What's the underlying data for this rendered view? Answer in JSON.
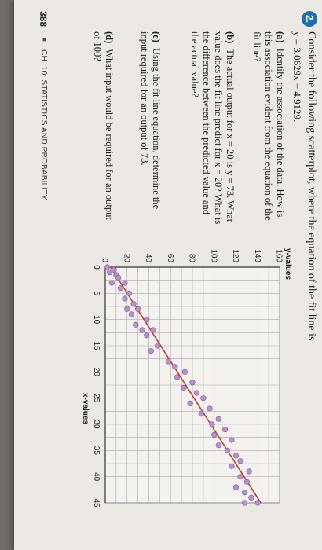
{
  "page_number": "388",
  "footer": "CH. 10: STATISTICS AND PROBABILITY",
  "question": {
    "number": "2.",
    "stem": "Consider the following scatterplot, where the equation of the fit line is",
    "equation": "y = 3.0629x + 4.9129."
  },
  "parts": [
    {
      "label": "(a)",
      "text": "Identify the association of the data. How is this association evident from the equation of the fit line?"
    },
    {
      "label": "(b)",
      "text": "The actual output for x = 20 is y = 73. What value does the fit line predict for x = 20? What is the difference between the predicted value and the actual value?"
    },
    {
      "label": "(c)",
      "text": "Using the fit line equation, determine the input required for an output of 73."
    },
    {
      "label": "(d)",
      "text": "What input would be required for an output of 100?"
    }
  ],
  "chart_data": {
    "type": "scatter",
    "xlabel": "x-values",
    "ylabel": "y-values",
    "xlim": [
      0,
      45
    ],
    "ylim": [
      0,
      160
    ],
    "xticks": [
      "0",
      "5",
      "10",
      "15",
      "20",
      "25",
      "30",
      "35",
      "40",
      "45"
    ],
    "yticks": [
      "0",
      "20",
      "40",
      "60",
      "80",
      "100",
      "120",
      "140",
      "160"
    ],
    "grid": true,
    "fit_line": {
      "slope": 3.0629,
      "intercept": 4.9129,
      "color": "#c0392b"
    },
    "point_color": "#b98fcf",
    "points": [
      [
        0,
        2
      ],
      [
        0.5,
        8
      ],
      [
        1,
        4
      ],
      [
        1.5,
        10
      ],
      [
        2,
        12
      ],
      [
        3,
        6
      ],
      [
        3,
        18
      ],
      [
        4,
        14
      ],
      [
        5,
        22
      ],
      [
        6,
        18
      ],
      [
        7,
        26
      ],
      [
        8,
        20
      ],
      [
        8,
        30
      ],
      [
        9,
        24
      ],
      [
        10,
        38
      ],
      [
        11,
        28
      ],
      [
        12,
        34
      ],
      [
        12,
        44
      ],
      [
        13,
        38
      ],
      [
        15,
        48
      ],
      [
        16,
        42
      ],
      [
        18,
        58
      ],
      [
        19,
        64
      ],
      [
        20,
        73
      ],
      [
        21,
        66
      ],
      [
        22,
        80
      ],
      [
        23,
        72
      ],
      [
        24,
        84
      ],
      [
        25,
        90
      ],
      [
        26,
        78
      ],
      [
        27,
        96
      ],
      [
        28,
        88
      ],
      [
        29,
        104
      ],
      [
        30,
        98
      ],
      [
        31,
        110
      ],
      [
        32,
        100
      ],
      [
        33,
        116
      ],
      [
        34,
        104
      ],
      [
        35,
        112
      ],
      [
        36,
        120
      ],
      [
        37,
        124
      ],
      [
        38,
        116
      ],
      [
        39,
        132
      ],
      [
        40,
        124
      ],
      [
        41,
        130
      ],
      [
        42,
        120
      ],
      [
        43,
        128
      ],
      [
        44,
        134
      ],
      [
        45,
        140
      ],
      [
        45,
        128
      ]
    ]
  }
}
